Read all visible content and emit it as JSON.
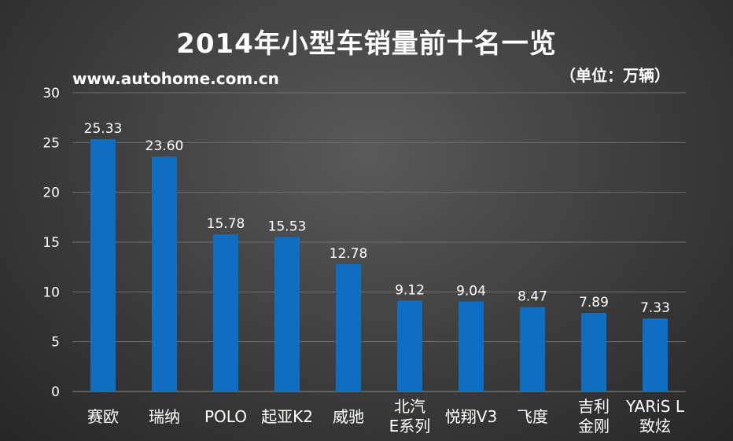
{
  "title": "2014年小型车销量前十名一览",
  "source": "www.autohome.com.cn",
  "unit": "（单位：万辆）",
  "colors": {
    "bar": "#0f6dc2",
    "grid": "#6e6e6e",
    "text": "#ffffff"
  },
  "chart_data": {
    "type": "bar",
    "title": "2014年小型车销量前十名一览",
    "xlabel": "",
    "ylabel": "",
    "ylim": [
      0,
      30
    ],
    "yticks": [
      "0",
      "5",
      "10",
      "15",
      "20",
      "25",
      "30"
    ],
    "grid": true,
    "categories": [
      [
        "赛欧"
      ],
      [
        "瑞纳"
      ],
      [
        "POLO"
      ],
      [
        "起亚K2"
      ],
      [
        "威驰"
      ],
      [
        "北汽",
        "E系列"
      ],
      [
        "悦翔V3"
      ],
      [
        "飞度"
      ],
      [
        "吉利",
        "金刚"
      ],
      [
        "YARiS L",
        "致炫"
      ]
    ],
    "values": [
      25.33,
      23.6,
      15.78,
      15.53,
      12.78,
      9.12,
      9.04,
      8.47,
      7.89,
      7.33
    ],
    "value_labels": [
      "25.33",
      "23.60",
      "15.78",
      "15.53",
      "12.78",
      "9.12",
      "9.04",
      "8.47",
      "7.89",
      "7.33"
    ]
  }
}
